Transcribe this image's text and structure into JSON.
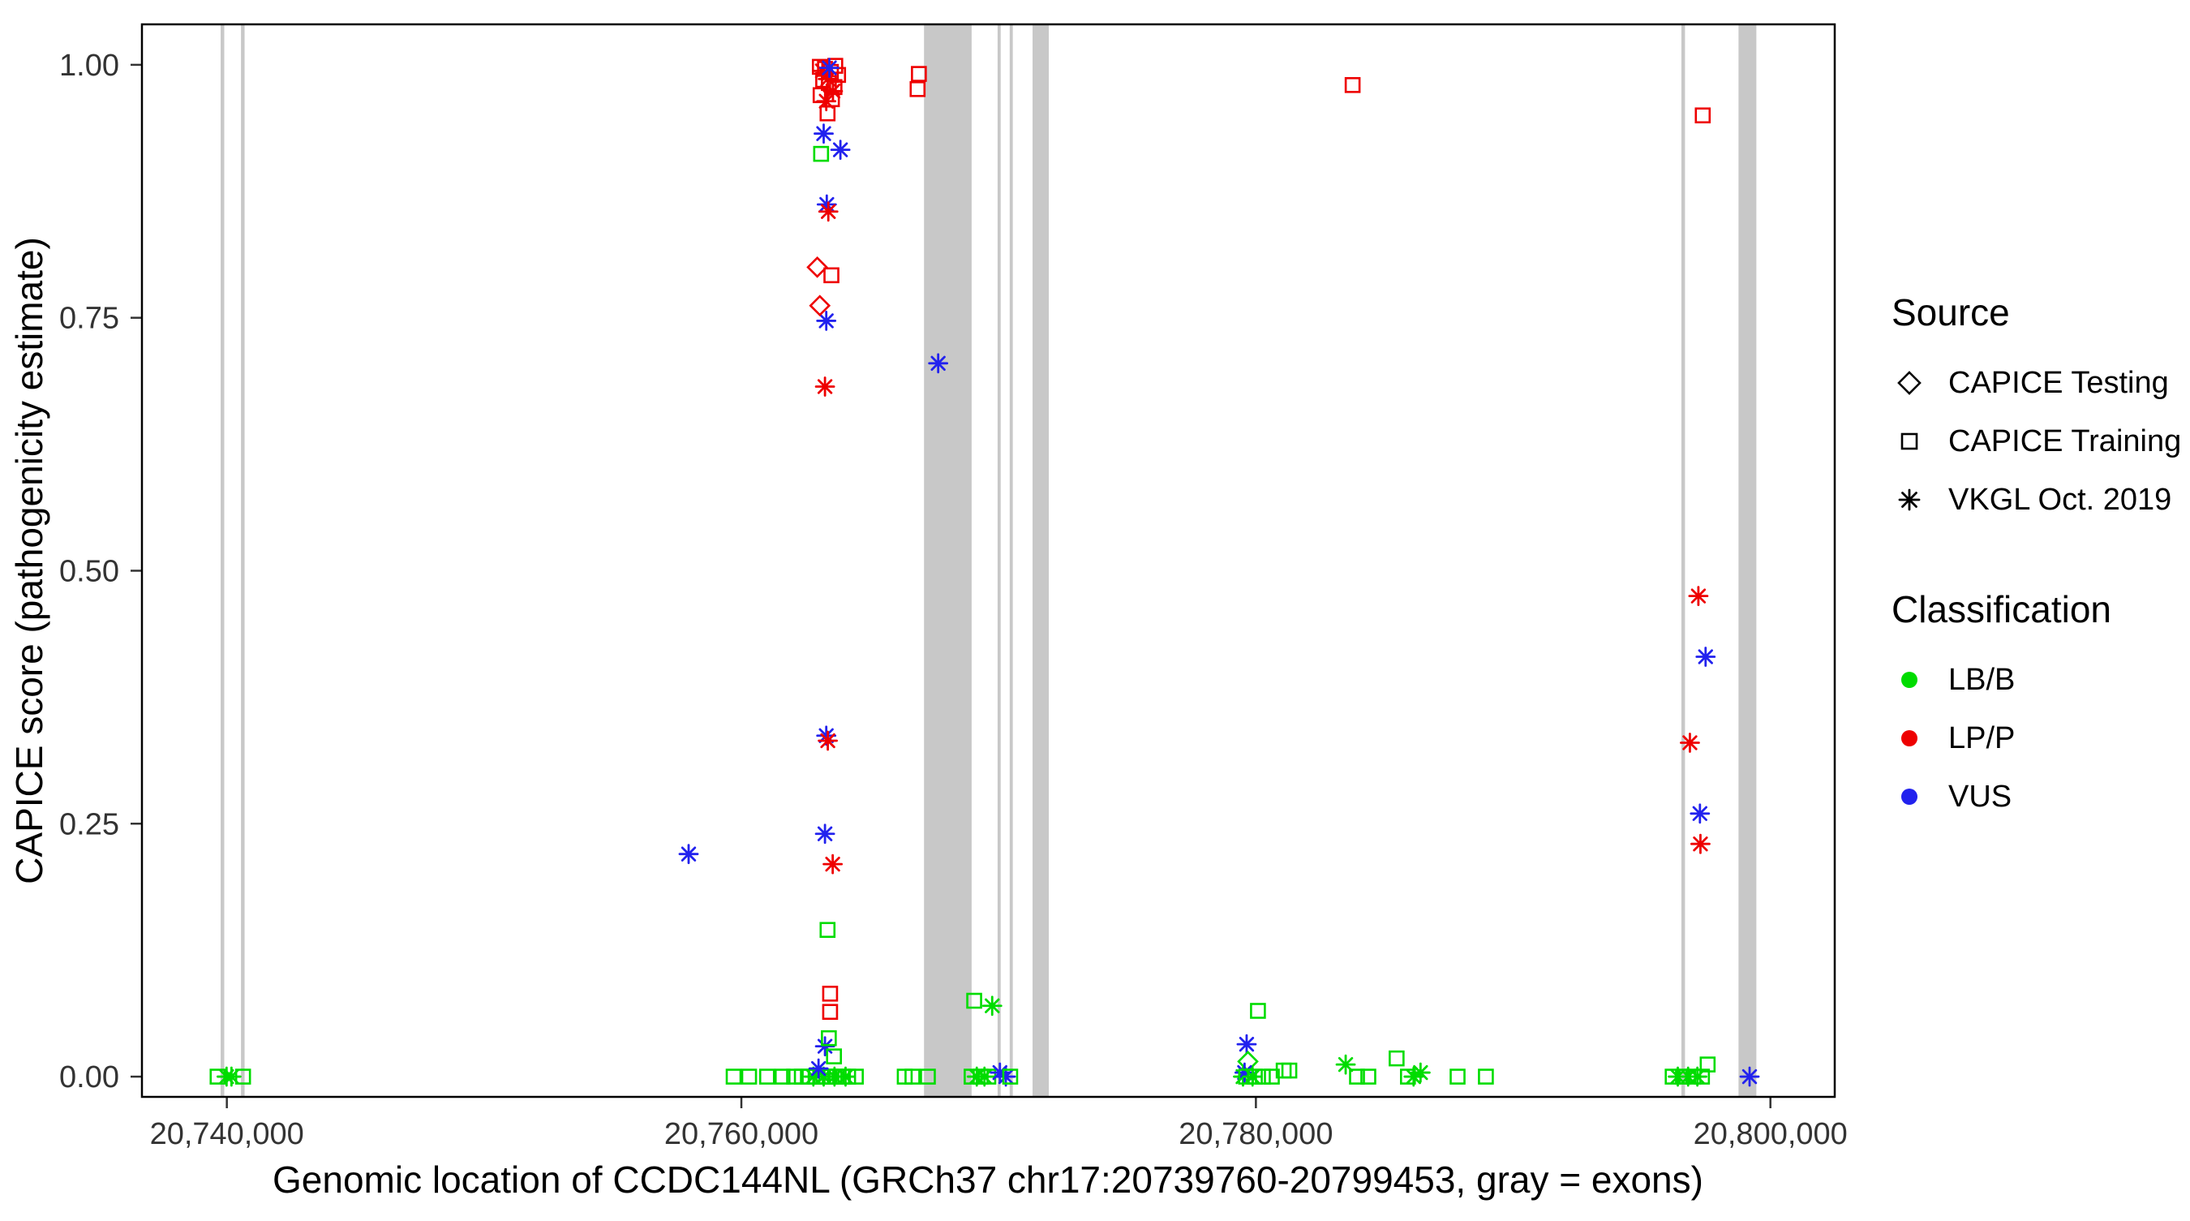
{
  "chart_data": {
    "type": "scatter",
    "title": "",
    "xlabel": "Genomic location of CCDC144NL (GRCh37 chr17:20739760-20799453, gray = exons)",
    "ylabel": "CAPICE score (pathogenicity estimate)",
    "x_domain": [
      20736700,
      20802500
    ],
    "y_domain": [
      -0.02,
      1.04
    ],
    "x_ticks": [
      {
        "value": 20740000,
        "label": "20,740,000"
      },
      {
        "value": 20760000,
        "label": "20,760,000"
      },
      {
        "value": 20780000,
        "label": "20,780,000"
      },
      {
        "value": 20800000,
        "label": "20,800,000"
      }
    ],
    "y_ticks": [
      {
        "value": 0.0,
        "label": "0.00"
      },
      {
        "value": 0.25,
        "label": "0.25"
      },
      {
        "value": 0.5,
        "label": "0.50"
      },
      {
        "value": 0.75,
        "label": "0.75"
      },
      {
        "value": 1.0,
        "label": "1.00"
      }
    ],
    "grid": false,
    "legend_position": "right",
    "exon_color": "#C8C8C8",
    "colors": {
      "LB/B": "#00DC00",
      "LP/P": "#EE0000",
      "VUS": "#2222EE"
    },
    "shapes": {
      "CAPICE Testing": "diamond",
      "CAPICE Training": "square",
      "VKGL Oct. 2019": "asterisk"
    },
    "legend": {
      "source": {
        "title": "Source",
        "items": [
          {
            "label": "CAPICE Testing",
            "shape": "diamond"
          },
          {
            "label": "CAPICE Training",
            "shape": "square"
          },
          {
            "label": "VKGL Oct. 2019",
            "shape": "asterisk"
          }
        ]
      },
      "classification": {
        "title": "Classification",
        "items": [
          {
            "label": "LB/B",
            "color": "#00DC00"
          },
          {
            "label": "LP/P",
            "color": "#EE0000"
          },
          {
            "label": "VUS",
            "color": "#2222EE"
          }
        ]
      }
    },
    "exons": [
      [
        20739760,
        20739900
      ],
      [
        20740550,
        20740690
      ],
      [
        20767100,
        20768950
      ],
      [
        20769960,
        20770080
      ],
      [
        20770430,
        20770550
      ],
      [
        20771320,
        20771950
      ],
      [
        20796540,
        20796680
      ],
      [
        20798760,
        20799453
      ]
    ],
    "points": [
      {
        "x": 20739640,
        "y": 0.0,
        "source": "training",
        "classification": "LB/B"
      },
      {
        "x": 20739990,
        "y": 0.0,
        "source": "vkgl",
        "classification": "LB/B"
      },
      {
        "x": 20740180,
        "y": 0.0,
        "source": "vkgl",
        "classification": "LB/B"
      },
      {
        "x": 20740630,
        "y": 0.0,
        "source": "training",
        "classification": "LB/B"
      },
      {
        "x": 20757950,
        "y": 0.22,
        "source": "vkgl",
        "classification": "VUS"
      },
      {
        "x": 20759700,
        "y": 0.0,
        "source": "training",
        "classification": "LB/B"
      },
      {
        "x": 20760300,
        "y": 0.0,
        "source": "training",
        "classification": "LB/B"
      },
      {
        "x": 20761000,
        "y": 0.0,
        "source": "training",
        "classification": "LB/B"
      },
      {
        "x": 20761600,
        "y": 0.0,
        "source": "training",
        "classification": "LB/B"
      },
      {
        "x": 20762050,
        "y": 0.0,
        "source": "training",
        "classification": "LB/B"
      },
      {
        "x": 20762350,
        "y": 0.0,
        "source": "training",
        "classification": "LB/B"
      },
      {
        "x": 20762650,
        "y": 0.0,
        "source": "training",
        "classification": "LB/B"
      },
      {
        "x": 20762900,
        "y": 0.0,
        "source": "training",
        "classification": "LB/B"
      },
      {
        "x": 20763100,
        "y": 0.0,
        "source": "training",
        "classification": "LB/B"
      },
      {
        "x": 20763300,
        "y": 0.0,
        "source": "training",
        "classification": "LB/B"
      },
      {
        "x": 20763500,
        "y": 0.0,
        "source": "training",
        "classification": "LB/B"
      },
      {
        "x": 20763700,
        "y": 0.0,
        "source": "training",
        "classification": "LB/B"
      },
      {
        "x": 20763950,
        "y": 0.0,
        "source": "training",
        "classification": "LB/B"
      },
      {
        "x": 20764150,
        "y": 0.0,
        "source": "training",
        "classification": "LB/B"
      },
      {
        "x": 20764450,
        "y": 0.0,
        "source": "training",
        "classification": "LB/B"
      },
      {
        "x": 20762800,
        "y": 0.0,
        "source": "vkgl",
        "classification": "LB/B"
      },
      {
        "x": 20763200,
        "y": 0.0,
        "source": "vkgl",
        "classification": "LB/B"
      },
      {
        "x": 20763620,
        "y": 0.0,
        "source": "vkgl",
        "classification": "LB/B"
      },
      {
        "x": 20764050,
        "y": 0.0,
        "source": "vkgl",
        "classification": "LB/B"
      },
      {
        "x": 20763000,
        "y": 0.008,
        "source": "vkgl",
        "classification": "VUS"
      },
      {
        "x": 20763250,
        "y": 0.03,
        "source": "vkgl",
        "classification": "VUS"
      },
      {
        "x": 20763400,
        "y": 0.038,
        "source": "training",
        "classification": "LB/B"
      },
      {
        "x": 20763600,
        "y": 0.02,
        "source": "training",
        "classification": "LB/B"
      },
      {
        "x": 20763450,
        "y": 0.064,
        "source": "training",
        "classification": "LP/P"
      },
      {
        "x": 20763450,
        "y": 0.082,
        "source": "training",
        "classification": "LP/P"
      },
      {
        "x": 20763350,
        "y": 0.145,
        "source": "training",
        "classification": "LB/B"
      },
      {
        "x": 20763550,
        "y": 0.21,
        "source": "vkgl",
        "classification": "LP/P"
      },
      {
        "x": 20763250,
        "y": 0.24,
        "source": "vkgl",
        "classification": "VUS"
      },
      {
        "x": 20763300,
        "y": 0.337,
        "source": "vkgl",
        "classification": "VUS"
      },
      {
        "x": 20763360,
        "y": 0.332,
        "source": "vkgl",
        "classification": "LP/P"
      },
      {
        "x": 20763250,
        "y": 0.682,
        "source": "vkgl",
        "classification": "LP/P"
      },
      {
        "x": 20763300,
        "y": 0.747,
        "source": "vkgl",
        "classification": "VUS"
      },
      {
        "x": 20763050,
        "y": 0.762,
        "source": "testing",
        "classification": "LP/P"
      },
      {
        "x": 20763500,
        "y": 0.792,
        "source": "training",
        "classification": "LP/P"
      },
      {
        "x": 20762950,
        "y": 0.8,
        "source": "testing",
        "classification": "LP/P"
      },
      {
        "x": 20763320,
        "y": 0.862,
        "source": "vkgl",
        "classification": "VUS"
      },
      {
        "x": 20763380,
        "y": 0.855,
        "source": "vkgl",
        "classification": "LP/P"
      },
      {
        "x": 20763100,
        "y": 0.912,
        "source": "training",
        "classification": "LB/B"
      },
      {
        "x": 20763200,
        "y": 0.932,
        "source": "vkgl",
        "classification": "VUS"
      },
      {
        "x": 20763850,
        "y": 0.916,
        "source": "vkgl",
        "classification": "VUS"
      },
      {
        "x": 20763350,
        "y": 0.952,
        "source": "training",
        "classification": "LP/P"
      },
      {
        "x": 20763050,
        "y": 0.998,
        "source": "training",
        "classification": "LP/P"
      },
      {
        "x": 20763250,
        "y": 0.996,
        "source": "training",
        "classification": "LP/P"
      },
      {
        "x": 20763480,
        "y": 0.993,
        "source": "training",
        "classification": "LP/P"
      },
      {
        "x": 20763650,
        "y": 0.999,
        "source": "training",
        "classification": "LP/P"
      },
      {
        "x": 20763180,
        "y": 0.985,
        "source": "training",
        "classification": "LP/P"
      },
      {
        "x": 20763400,
        "y": 0.982,
        "source": "training",
        "classification": "LP/P"
      },
      {
        "x": 20763620,
        "y": 0.978,
        "source": "training",
        "classification": "LP/P"
      },
      {
        "x": 20763760,
        "y": 0.99,
        "source": "training",
        "classification": "LP/P"
      },
      {
        "x": 20763080,
        "y": 0.97,
        "source": "training",
        "classification": "LP/P"
      },
      {
        "x": 20763520,
        "y": 0.966,
        "source": "training",
        "classification": "LP/P"
      },
      {
        "x": 20763150,
        "y": 0.994,
        "source": "vkgl",
        "classification": "LP/P"
      },
      {
        "x": 20763360,
        "y": 0.986,
        "source": "vkgl",
        "classification": "LP/P"
      },
      {
        "x": 20763560,
        "y": 0.974,
        "source": "vkgl",
        "classification": "LP/P"
      },
      {
        "x": 20763300,
        "y": 0.964,
        "source": "vkgl",
        "classification": "LP/P"
      },
      {
        "x": 20763420,
        "y": 0.997,
        "source": "vkgl",
        "classification": "VUS"
      },
      {
        "x": 20766850,
        "y": 0.976,
        "source": "training",
        "classification": "LP/P"
      },
      {
        "x": 20766900,
        "y": 0.991,
        "source": "training",
        "classification": "LP/P"
      },
      {
        "x": 20766350,
        "y": 0.0,
        "source": "training",
        "classification": "LB/B"
      },
      {
        "x": 20766650,
        "y": 0.0,
        "source": "training",
        "classification": "LB/B"
      },
      {
        "x": 20767250,
        "y": 0.0,
        "source": "training",
        "classification": "LB/B"
      },
      {
        "x": 20767650,
        "y": 0.705,
        "source": "vkgl",
        "classification": "VUS"
      },
      {
        "x": 20769050,
        "y": 0.075,
        "source": "training",
        "classification": "LB/B"
      },
      {
        "x": 20769750,
        "y": 0.07,
        "source": "vkgl",
        "classification": "LB/B"
      },
      {
        "x": 20768950,
        "y": 0.0,
        "source": "training",
        "classification": "LB/B"
      },
      {
        "x": 20769150,
        "y": 0.0,
        "source": "vkgl",
        "classification": "LB/B"
      },
      {
        "x": 20769300,
        "y": 0.0,
        "source": "training",
        "classification": "LB/B"
      },
      {
        "x": 20769450,
        "y": 0.0,
        "source": "vkgl",
        "classification": "LB/B"
      },
      {
        "x": 20769600,
        "y": 0.0,
        "source": "training",
        "classification": "LB/B"
      },
      {
        "x": 20770050,
        "y": 0.004,
        "source": "vkgl",
        "classification": "VUS"
      },
      {
        "x": 20770280,
        "y": 0.0,
        "source": "vkgl",
        "classification": "VUS"
      },
      {
        "x": 20770450,
        "y": 0.0,
        "source": "training",
        "classification": "LB/B"
      },
      {
        "x": 20779640,
        "y": 0.032,
        "source": "vkgl",
        "classification": "VUS"
      },
      {
        "x": 20779690,
        "y": 0.015,
        "source": "testing",
        "classification": "LB/B"
      },
      {
        "x": 20780080,
        "y": 0.065,
        "source": "training",
        "classification": "LB/B"
      },
      {
        "x": 20779500,
        "y": 0.0,
        "source": "vkgl",
        "classification": "LB/B"
      },
      {
        "x": 20779560,
        "y": 0.004,
        "source": "vkgl",
        "classification": "VUS"
      },
      {
        "x": 20779620,
        "y": 0.0,
        "source": "training",
        "classification": "LB/B"
      },
      {
        "x": 20779870,
        "y": 0.0,
        "source": "vkgl",
        "classification": "LB/B"
      },
      {
        "x": 20779960,
        "y": 0.0,
        "source": "training",
        "classification": "LB/B"
      },
      {
        "x": 20780270,
        "y": 0.0,
        "source": "training",
        "classification": "LB/B"
      },
      {
        "x": 20780620,
        "y": 0.0,
        "source": "training",
        "classification": "LB/B"
      },
      {
        "x": 20781080,
        "y": 0.006,
        "source": "training",
        "classification": "LB/B"
      },
      {
        "x": 20781300,
        "y": 0.006,
        "source": "training",
        "classification": "LB/B"
      },
      {
        "x": 20783490,
        "y": 0.012,
        "source": "vkgl",
        "classification": "LB/B"
      },
      {
        "x": 20783760,
        "y": 0.98,
        "source": "training",
        "classification": "LP/P"
      },
      {
        "x": 20783930,
        "y": 0.0,
        "source": "training",
        "classification": "LB/B"
      },
      {
        "x": 20784370,
        "y": 0.0,
        "source": "training",
        "classification": "LB/B"
      },
      {
        "x": 20785470,
        "y": 0.018,
        "source": "training",
        "classification": "LB/B"
      },
      {
        "x": 20785910,
        "y": 0.0,
        "source": "training",
        "classification": "LB/B"
      },
      {
        "x": 20786130,
        "y": 0.0,
        "source": "vkgl",
        "classification": "LB/B"
      },
      {
        "x": 20786400,
        "y": 0.004,
        "source": "vkgl",
        "classification": "LB/B"
      },
      {
        "x": 20787840,
        "y": 0.0,
        "source": "training",
        "classification": "LB/B"
      },
      {
        "x": 20788940,
        "y": 0.0,
        "source": "training",
        "classification": "LB/B"
      },
      {
        "x": 20797370,
        "y": 0.95,
        "source": "training",
        "classification": "LP/P"
      },
      {
        "x": 20797200,
        "y": 0.475,
        "source": "vkgl",
        "classification": "LP/P"
      },
      {
        "x": 20797480,
        "y": 0.415,
        "source": "vkgl",
        "classification": "VUS"
      },
      {
        "x": 20796870,
        "y": 0.33,
        "source": "vkgl",
        "classification": "LP/P"
      },
      {
        "x": 20797260,
        "y": 0.26,
        "source": "vkgl",
        "classification": "VUS"
      },
      {
        "x": 20797280,
        "y": 0.23,
        "source": "vkgl",
        "classification": "LP/P"
      },
      {
        "x": 20796200,
        "y": 0.0,
        "source": "training",
        "classification": "LB/B"
      },
      {
        "x": 20796400,
        "y": 0.0,
        "source": "vkgl",
        "classification": "LB/B"
      },
      {
        "x": 20796600,
        "y": 0.0,
        "source": "training",
        "classification": "LB/B"
      },
      {
        "x": 20796800,
        "y": 0.0,
        "source": "vkgl",
        "classification": "LB/B"
      },
      {
        "x": 20797000,
        "y": 0.0,
        "source": "training",
        "classification": "LB/B"
      },
      {
        "x": 20797160,
        "y": 0.0,
        "source": "vkgl",
        "classification": "LB/B"
      },
      {
        "x": 20797340,
        "y": 0.0,
        "source": "training",
        "classification": "LB/B"
      },
      {
        "x": 20797560,
        "y": 0.012,
        "source": "training",
        "classification": "LB/B"
      },
      {
        "x": 20799190,
        "y": 0.0,
        "source": "vkgl",
        "classification": "VUS"
      }
    ]
  }
}
